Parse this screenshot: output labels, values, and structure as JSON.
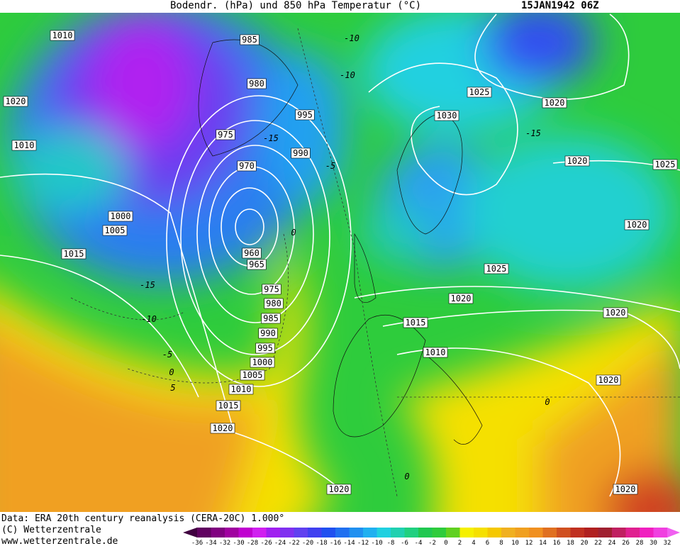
{
  "header": {
    "title": "Bodendr. (hPa) und 850 hPa Temperatur (°C)",
    "date": "15JAN1942 06Z"
  },
  "isobar_labels": [
    "1010",
    "985",
    "1020",
    "980",
    "995",
    "1030",
    "1025",
    "1020",
    "975",
    "990",
    "1010",
    "970",
    "1020",
    "1025",
    "1000",
    "1005",
    "1020",
    "1015",
    "960",
    "965",
    "1025",
    "975",
    "980",
    "1020",
    "985",
    "1020",
    "1015",
    "990",
    "995",
    "1010",
    "1000",
    "1005",
    "1020",
    "1010",
    "1015",
    "1020",
    "1020",
    "1020"
  ],
  "temperature_labels": [
    "-10",
    "-10",
    "-15",
    "-5",
    "-15",
    "0",
    "-15",
    "-10",
    "-5",
    "0",
    "5",
    "0",
    "0"
  ],
  "footer": {
    "source": "Data: ERA 20th century reanalysis (CERA-20C) 1.000°",
    "copyright": "(C) Wetterzentrale",
    "url": "www.wetterzentrale.de"
  },
  "legend": {
    "labels": [
      -36,
      -34,
      -32,
      -30,
      -28,
      -26,
      -24,
      -22,
      -20,
      -18,
      -16,
      -14,
      -12,
      -10,
      -8,
      -6,
      -4,
      -2,
      0,
      2,
      4,
      6,
      8,
      10,
      12,
      14,
      16,
      18,
      20,
      22,
      24,
      26,
      28,
      30,
      32
    ]
  }
}
